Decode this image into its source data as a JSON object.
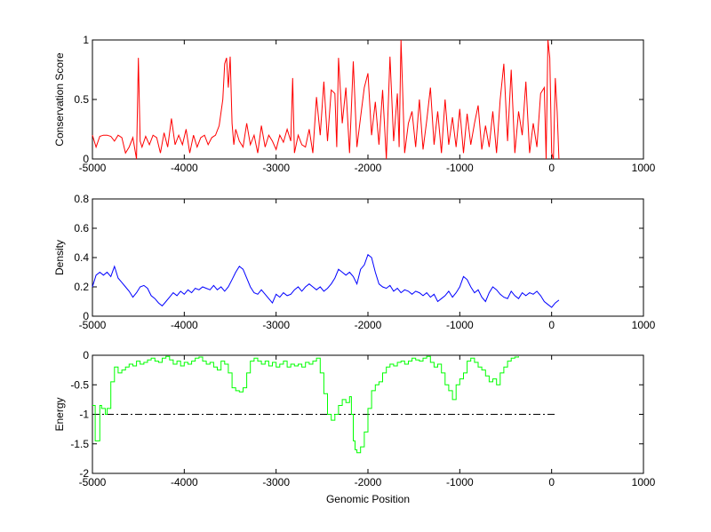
{
  "chart_data": [
    {
      "type": "line",
      "xlabel": "",
      "ylabel": "Conservation Score",
      "xlim": [
        -5000,
        1000
      ],
      "ylim": [
        0,
        1
      ],
      "xticks": [
        "-5000",
        "-4000",
        "-3000",
        "-2000",
        "-1000",
        "0",
        "1000"
      ],
      "yticks": [
        "0",
        "0.5",
        "1"
      ],
      "color": "#ff0000",
      "series": [
        {
          "x": [
            -5000,
            -4960,
            -4920,
            -4880,
            -4840,
            -4800,
            -4760,
            -4720,
            -4680,
            -4640,
            -4600,
            -4560,
            -4520,
            -4500,
            -4480,
            -4460,
            -4420,
            -4380,
            -4340,
            -4300,
            -4260,
            -4220,
            -4180,
            -4140,
            -4100,
            -4060,
            -4020,
            -3980,
            -3940,
            -3900,
            -3860,
            -3820,
            -3780,
            -3740,
            -3700,
            -3660,
            -3620,
            -3580,
            -3560,
            -3540,
            -3520,
            -3500,
            -3480,
            -3460,
            -3440,
            -3400,
            -3360,
            -3320,
            -3280,
            -3240,
            -3200,
            -3160,
            -3120,
            -3080,
            -3040,
            -3000,
            -2960,
            -2920,
            -2880,
            -2840,
            -2820,
            -2800,
            -2760,
            -2720,
            -2680,
            -2640,
            -2600,
            -2560,
            -2520,
            -2480,
            -2440,
            -2400,
            -2360,
            -2340,
            -2320,
            -2280,
            -2240,
            -2200,
            -2160,
            -2120,
            -2080,
            -2040,
            -2000,
            -1960,
            -1920,
            -1880,
            -1840,
            -1800,
            -1760,
            -1720,
            -1680,
            -1660,
            -1640,
            -1600,
            -1560,
            -1520,
            -1480,
            -1440,
            -1400,
            -1360,
            -1320,
            -1280,
            -1240,
            -1200,
            -1160,
            -1120,
            -1080,
            -1040,
            -1000,
            -960,
            -920,
            -880,
            -840,
            -800,
            -760,
            -720,
            -680,
            -640,
            -600,
            -560,
            -520,
            -480,
            -440,
            -400,
            -360,
            -320,
            -280,
            -240,
            -200,
            -160,
            -120,
            -80,
            -60,
            -40,
            -20,
            0,
            20,
            40,
            60,
            80
          ],
          "y": [
            0.2,
            0.1,
            0.19,
            0.2,
            0.2,
            0.19,
            0.15,
            0.2,
            0.18,
            0.05,
            0.1,
            0.18,
            0.0,
            0.85,
            0.15,
            0.1,
            0.19,
            0.12,
            0.2,
            0.18,
            0.05,
            0.22,
            0.1,
            0.34,
            0.12,
            0.2,
            0.12,
            0.25,
            0.05,
            0.2,
            0.1,
            0.18,
            0.2,
            0.12,
            0.18,
            0.2,
            0.28,
            0.5,
            0.8,
            0.85,
            0.6,
            0.86,
            0.3,
            0.12,
            0.25,
            0.15,
            0.1,
            0.3,
            0.12,
            0.2,
            0.05,
            0.28,
            0.1,
            0.2,
            0.15,
            0.08,
            0.2,
            0.14,
            0.25,
            0.15,
            0.68,
            0.05,
            0.2,
            0.12,
            0.1,
            0.25,
            0.05,
            0.52,
            0.2,
            0.65,
            0.15,
            0.58,
            0.55,
            0.1,
            0.85,
            0.3,
            0.6,
            0.05,
            0.82,
            0.1,
            0.35,
            0.6,
            0.72,
            0.2,
            0.48,
            0.12,
            0.58,
            0.0,
            0.86,
            0.15,
            0.55,
            0.1,
            1.0,
            0.05,
            0.3,
            0.4,
            0.1,
            0.5,
            0.08,
            0.32,
            0.6,
            0.12,
            0.4,
            0.05,
            0.5,
            0.12,
            0.35,
            0.1,
            0.42,
            0.05,
            0.38,
            0.12,
            0.3,
            0.45,
            0.08,
            0.28,
            0.1,
            0.4,
            0.05,
            0.5,
            0.8,
            0.15,
            0.75,
            0.05,
            0.4,
            0.2,
            0.65,
            0.05,
            0.3,
            0.1,
            0.55,
            0.6,
            0.0,
            1.0,
            0.85,
            0.05,
            0.0,
            0.68,
            0.4,
            0.0
          ],
          "color": "#ff0000"
        }
      ]
    },
    {
      "type": "line",
      "xlabel": "",
      "ylabel": "Density",
      "xlim": [
        -5000,
        1000
      ],
      "ylim": [
        0,
        0.8
      ],
      "xticks": [
        "-5000",
        "-4000",
        "-3000",
        "-2000",
        "-1000",
        "0",
        "1000"
      ],
      "yticks": [
        "0",
        "0.2",
        "0.4",
        "0.6",
        "0.8"
      ],
      "color": "#0000ff",
      "series": [
        {
          "x": [
            -5000,
            -4960,
            -4920,
            -4880,
            -4840,
            -4800,
            -4760,
            -4720,
            -4680,
            -4640,
            -4600,
            -4560,
            -4520,
            -4480,
            -4440,
            -4400,
            -4360,
            -4320,
            -4280,
            -4240,
            -4200,
            -4160,
            -4120,
            -4080,
            -4040,
            -4000,
            -3960,
            -3920,
            -3880,
            -3840,
            -3800,
            -3760,
            -3720,
            -3680,
            -3640,
            -3600,
            -3560,
            -3520,
            -3480,
            -3440,
            -3400,
            -3360,
            -3320,
            -3280,
            -3240,
            -3200,
            -3160,
            -3120,
            -3080,
            -3040,
            -3000,
            -2960,
            -2920,
            -2880,
            -2840,
            -2800,
            -2760,
            -2720,
            -2680,
            -2640,
            -2600,
            -2560,
            -2520,
            -2480,
            -2440,
            -2400,
            -2360,
            -2320,
            -2280,
            -2240,
            -2200,
            -2160,
            -2120,
            -2080,
            -2040,
            -2000,
            -1960,
            -1920,
            -1880,
            -1840,
            -1800,
            -1760,
            -1720,
            -1680,
            -1640,
            -1600,
            -1560,
            -1520,
            -1480,
            -1440,
            -1400,
            -1360,
            -1320,
            -1280,
            -1240,
            -1200,
            -1160,
            -1120,
            -1080,
            -1040,
            -1000,
            -960,
            -920,
            -880,
            -840,
            -800,
            -760,
            -720,
            -680,
            -640,
            -600,
            -560,
            -520,
            -480,
            -440,
            -400,
            -360,
            -320,
            -280,
            -240,
            -200,
            -160,
            -120,
            -80,
            -40,
            0,
            40,
            80
          ],
          "y": [
            0.2,
            0.28,
            0.3,
            0.28,
            0.3,
            0.27,
            0.34,
            0.26,
            0.23,
            0.2,
            0.17,
            0.13,
            0.16,
            0.2,
            0.21,
            0.19,
            0.14,
            0.12,
            0.09,
            0.07,
            0.1,
            0.13,
            0.16,
            0.14,
            0.17,
            0.15,
            0.18,
            0.16,
            0.19,
            0.18,
            0.2,
            0.19,
            0.18,
            0.21,
            0.18,
            0.2,
            0.17,
            0.2,
            0.25,
            0.3,
            0.34,
            0.32,
            0.26,
            0.2,
            0.16,
            0.15,
            0.18,
            0.15,
            0.12,
            0.09,
            0.15,
            0.13,
            0.16,
            0.14,
            0.15,
            0.18,
            0.2,
            0.17,
            0.2,
            0.22,
            0.2,
            0.18,
            0.2,
            0.17,
            0.19,
            0.22,
            0.26,
            0.32,
            0.3,
            0.28,
            0.3,
            0.27,
            0.22,
            0.32,
            0.35,
            0.42,
            0.4,
            0.3,
            0.22,
            0.2,
            0.19,
            0.21,
            0.17,
            0.19,
            0.16,
            0.18,
            0.17,
            0.15,
            0.17,
            0.16,
            0.14,
            0.16,
            0.13,
            0.15,
            0.1,
            0.12,
            0.14,
            0.17,
            0.13,
            0.16,
            0.2,
            0.27,
            0.25,
            0.2,
            0.16,
            0.18,
            0.13,
            0.1,
            0.16,
            0.2,
            0.18,
            0.15,
            0.13,
            0.12,
            0.17,
            0.14,
            0.12,
            0.16,
            0.14,
            0.16,
            0.15,
            0.17,
            0.14,
            0.1,
            0.08,
            0.06,
            0.09,
            0.11
          ],
          "color": "#0000ff"
        }
      ]
    },
    {
      "type": "line",
      "xlabel": "Genomic Position",
      "ylabel": "Energy",
      "xlim": [
        -5000,
        1000
      ],
      "ylim": [
        -2,
        0
      ],
      "xticks": [
        "-5000",
        "-4000",
        "-3000",
        "-2000",
        "-1000",
        "0",
        "1000"
      ],
      "yticks": [
        "-2",
        "-1.5",
        "-1",
        "-0.5",
        "0"
      ],
      "color": "#00ff00",
      "threshold": {
        "y": -1,
        "x": [
          -5000,
          60
        ],
        "color": "#000000",
        "style": "dash-dot"
      },
      "series": [
        {
          "x": [
            -5000,
            -4970,
            -4940,
            -4920,
            -4900,
            -4880,
            -4860,
            -4840,
            -4820,
            -4800,
            -4760,
            -4720,
            -4680,
            -4640,
            -4600,
            -4560,
            -4520,
            -4480,
            -4440,
            -4400,
            -4360,
            -4320,
            -4280,
            -4240,
            -4200,
            -4160,
            -4120,
            -4080,
            -4040,
            -4000,
            -3960,
            -3920,
            -3880,
            -3840,
            -3800,
            -3760,
            -3720,
            -3680,
            -3640,
            -3600,
            -3560,
            -3520,
            -3480,
            -3440,
            -3400,
            -3360,
            -3320,
            -3280,
            -3240,
            -3200,
            -3160,
            -3120,
            -3080,
            -3040,
            -3000,
            -2960,
            -2920,
            -2880,
            -2840,
            -2800,
            -2760,
            -2720,
            -2680,
            -2640,
            -2600,
            -2560,
            -2520,
            -2480,
            -2440,
            -2400,
            -2380,
            -2360,
            -2320,
            -2280,
            -2240,
            -2200,
            -2180,
            -2160,
            -2140,
            -2120,
            -2080,
            -2040,
            -2000,
            -1960,
            -1920,
            -1880,
            -1840,
            -1800,
            -1760,
            -1720,
            -1680,
            -1640,
            -1600,
            -1560,
            -1520,
            -1480,
            -1440,
            -1400,
            -1360,
            -1320,
            -1280,
            -1240,
            -1200,
            -1160,
            -1120,
            -1080,
            -1040,
            -1000,
            -960,
            -920,
            -880,
            -840,
            -800,
            -760,
            -720,
            -680,
            -640,
            -600,
            -560,
            -520,
            -480,
            -440,
            -400,
            -360
          ],
          "y": [
            -0.85,
            -1.45,
            -1.45,
            -0.85,
            -0.9,
            -0.9,
            -1.0,
            -0.9,
            -0.9,
            -0.45,
            -0.2,
            -0.3,
            -0.25,
            -0.2,
            -0.15,
            -0.18,
            -0.1,
            -0.15,
            -0.12,
            -0.08,
            -0.05,
            -0.1,
            -0.12,
            -0.05,
            -0.02,
            -0.08,
            -0.15,
            -0.1,
            -0.18,
            -0.12,
            -0.15,
            -0.1,
            -0.05,
            -0.03,
            -0.1,
            -0.15,
            -0.12,
            -0.2,
            -0.25,
            -0.1,
            -0.15,
            -0.3,
            -0.55,
            -0.6,
            -0.62,
            -0.55,
            -0.3,
            -0.1,
            -0.05,
            -0.1,
            -0.15,
            -0.1,
            -0.18,
            -0.12,
            -0.2,
            -0.15,
            -0.1,
            -0.2,
            -0.15,
            -0.18,
            -0.15,
            -0.2,
            -0.12,
            -0.15,
            -0.1,
            -0.05,
            -0.3,
            -0.65,
            -1.0,
            -1.1,
            -1.1,
            -1.0,
            -0.85,
            -0.75,
            -0.8,
            -0.7,
            -1.0,
            -1.45,
            -1.6,
            -1.65,
            -1.55,
            -1.3,
            -0.9,
            -0.6,
            -0.5,
            -0.45,
            -0.3,
            -0.2,
            -0.15,
            -0.18,
            -0.12,
            -0.1,
            -0.15,
            -0.1,
            -0.05,
            -0.08,
            -0.1,
            -0.05,
            -0.02,
            -0.12,
            -0.2,
            -0.15,
            -0.3,
            -0.5,
            -0.6,
            -0.75,
            -0.5,
            -0.4,
            -0.3,
            -0.1,
            -0.05,
            -0.12,
            -0.2,
            -0.25,
            -0.35,
            -0.45,
            -0.4,
            -0.5,
            -0.3,
            -0.2,
            -0.1,
            -0.05,
            -0.03,
            -0.02
          ],
          "color": "#00ff00"
        }
      ]
    }
  ]
}
